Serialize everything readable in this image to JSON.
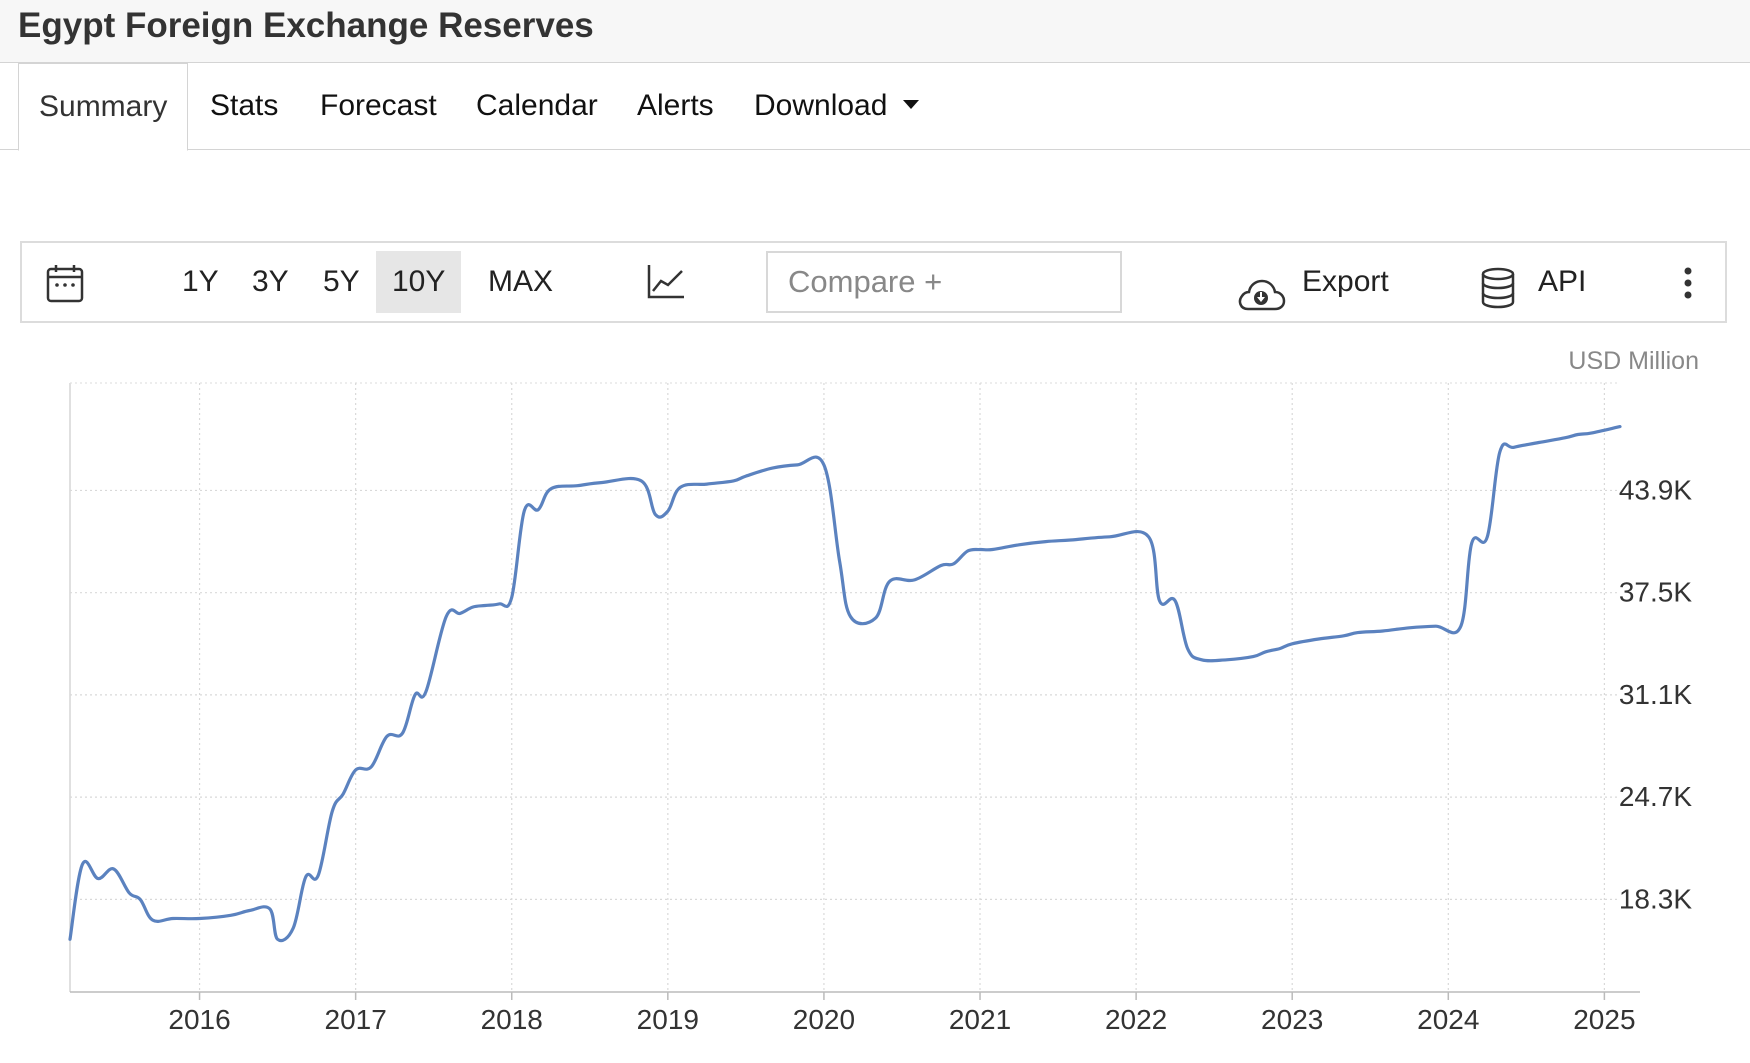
{
  "header": {
    "title": "Egypt Foreign Exchange Reserves"
  },
  "tabs": [
    {
      "label": "Summary"
    },
    {
      "label": "Stats"
    },
    {
      "label": "Forecast"
    },
    {
      "label": "Calendar"
    },
    {
      "label": "Alerts"
    },
    {
      "label": "Download"
    }
  ],
  "toolbar": {
    "ranges": [
      "1Y",
      "3Y",
      "5Y",
      "10Y",
      "MAX"
    ],
    "active_range": "10Y",
    "compare_placeholder": "Compare +",
    "export_label": "Export",
    "api_label": "API",
    "icons": [
      "calendar-icon",
      "line-chart-icon",
      "cloud-download-icon",
      "database-icon",
      "more-vertical-icon"
    ]
  },
  "chart_data": {
    "type": "line",
    "ylabel": "USD Million",
    "y_ticks": [
      18300,
      24700,
      31100,
      37500,
      43900
    ],
    "y_tick_labels": [
      "18.3K",
      "24.7K",
      "31.1K",
      "37.5K",
      "43.9K"
    ],
    "x_tick_labels": [
      "2016",
      "2017",
      "2018",
      "2019",
      "2020",
      "2021",
      "2022",
      "2023",
      "2024",
      "2025"
    ],
    "ylim": [
      12500,
      49500
    ],
    "xlim": [
      2015.17,
      2025.1
    ],
    "grid": true,
    "line_color": "#5b82bf",
    "series": [
      {
        "x": [
          2015.17,
          2015.25,
          2015.35,
          2015.45,
          2015.55,
          2015.62,
          2015.7,
          2015.83,
          2016.0,
          2016.2,
          2016.32,
          2016.45,
          2016.5,
          2016.6,
          2016.68,
          2016.76,
          2016.85,
          2016.92,
          2017.0,
          2017.1,
          2017.2,
          2017.3,
          2017.38,
          2017.45,
          2017.58,
          2017.67,
          2017.75,
          2017.83,
          2017.92,
          2018.0,
          2018.08,
          2018.17,
          2018.25,
          2018.42,
          2018.58,
          2018.83,
          2018.92,
          2019.0,
          2019.08,
          2019.25,
          2019.42,
          2019.5,
          2019.67,
          2019.83,
          2020.0,
          2020.1,
          2020.17,
          2020.33,
          2020.42,
          2020.58,
          2020.75,
          2020.83,
          2020.92,
          2021.0,
          2021.08,
          2021.25,
          2021.42,
          2021.58,
          2021.83,
          2022.08,
          2022.15,
          2022.25,
          2022.33,
          2022.42,
          2022.58,
          2022.75,
          2022.83,
          2022.92,
          2023.0,
          2023.17,
          2023.33,
          2023.42,
          2023.58,
          2023.75,
          2023.92,
          2024.08,
          2024.15,
          2024.25,
          2024.33,
          2024.42,
          2024.58,
          2024.75,
          2024.83,
          2024.92,
          2025.1
        ],
        "y": [
          15800,
          20500,
          19600,
          20200,
          18700,
          18300,
          17000,
          17100,
          17100,
          17300,
          17600,
          17700,
          15800,
          16500,
          19700,
          19800,
          23800,
          24900,
          26400,
          26600,
          28500,
          28700,
          31100,
          31300,
          36000,
          36200,
          36600,
          36700,
          36800,
          37200,
          42600,
          42700,
          44000,
          44200,
          44400,
          44500,
          42400,
          42600,
          44100,
          44300,
          44500,
          44800,
          45300,
          45500,
          45500,
          39500,
          36000,
          35900,
          38200,
          38300,
          39200,
          39300,
          40100,
          40200,
          40200,
          40500,
          40700,
          40800,
          41000,
          41000,
          37000,
          37000,
          34000,
          33300,
          33300,
          33500,
          33800,
          34000,
          34300,
          34600,
          34800,
          35000,
          35100,
          35300,
          35400,
          35400,
          40600,
          41000,
          46300,
          46600,
          46900,
          47200,
          47400,
          47500,
          47900
        ]
      }
    ]
  }
}
